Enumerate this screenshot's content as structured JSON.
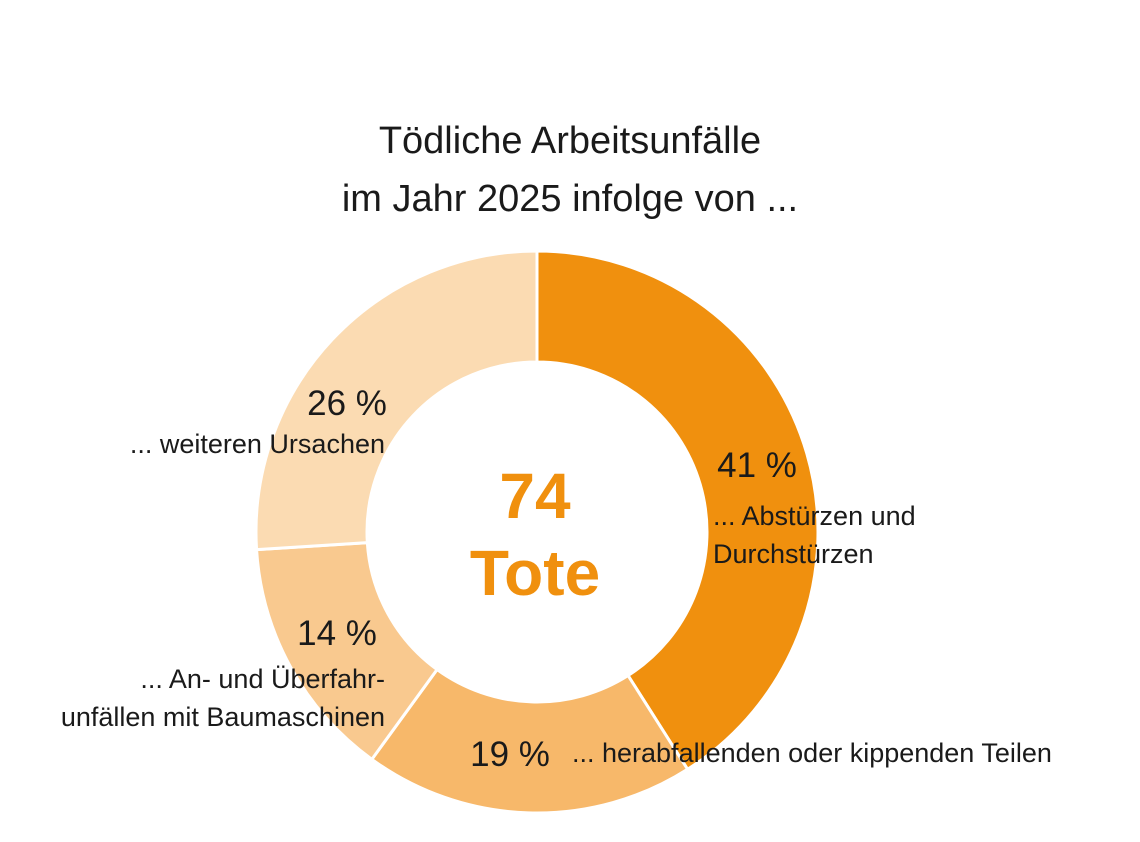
{
  "chart_data": {
    "type": "pie",
    "variant": "donut",
    "title_lines": [
      "Tödliche Arbeitsunfälle",
      "im Jahr 2025 infolge von ..."
    ],
    "center": {
      "value": "74",
      "unit": "Tote"
    },
    "slices": [
      {
        "value": 41,
        "pct_label": "41 %",
        "label_lines": [
          "... Abstürzen und",
          "Durchstürzen"
        ],
        "color": "#f0900e"
      },
      {
        "value": 19,
        "pct_label": "19 %",
        "label_lines": [
          "... herabfallenden oder kippenden Teilen"
        ],
        "color": "#f7b86a"
      },
      {
        "value": 14,
        "pct_label": "14 %",
        "label_lines": [
          "... An- und Überfahr-",
          "unfällen mit Baumaschinen"
        ],
        "color": "#f9c98f"
      },
      {
        "value": 26,
        "pct_label": "26 %",
        "label_lines": [
          "... weiteren Ursachen"
        ],
        "color": "#fbdbb2"
      }
    ],
    "accent_color": "#f0900e"
  }
}
